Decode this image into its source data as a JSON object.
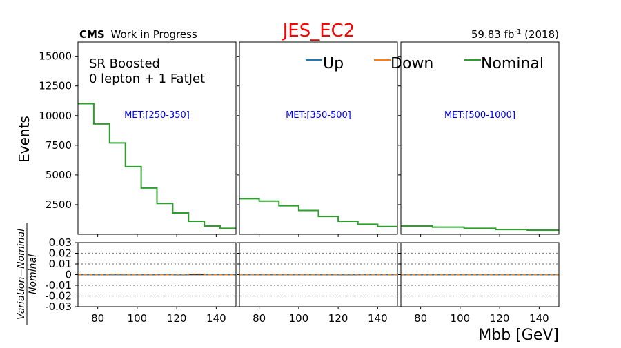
{
  "title": "JES_EC2",
  "header_left_bold": "CMS",
  "header_left_rest": "Work in Progress",
  "header_right": "59.83 fb",
  "header_right_sup": "-1",
  "header_right_tail": " (2018)",
  "region_line1": "SR Boosted",
  "region_line2": "0 lepton + 1 FatJet",
  "ylabel_top": "Events",
  "ylabel_bottom_num": "Variation−Nominal",
  "ylabel_bottom_den": "Nominal",
  "xlabel": "Mbb [GeV]",
  "legend": [
    "Up",
    "Down",
    "Nominal"
  ],
  "colors": {
    "up": "#1f77b4",
    "down": "#ff7f0e",
    "nominal": "#2ca02c",
    "title": "#ff0000",
    "met": "#0000ff"
  },
  "chart_data": {
    "type": "line",
    "drawstyle": "steps",
    "x_range": [
      70,
      150
    ],
    "y_range": [
      0,
      16200
    ],
    "y_ticks": [
      2500,
      5000,
      7500,
      10000,
      12500,
      15000
    ],
    "x_ticks": [
      80,
      100,
      120,
      140
    ],
    "ratio_ylim": [
      -0.03,
      0.03
    ],
    "ratio_ticks": [
      -0.03,
      -0.02,
      -0.01,
      0,
      0.01,
      0.02,
      0.03
    ],
    "ratio_tick_labels": [
      "-0.03",
      "-0.02",
      "-0.01",
      "0",
      "0.01",
      "0.02",
      "0.03"
    ],
    "ratio_grid": [
      -0.02,
      -0.01,
      0.01,
      0.02
    ],
    "panels": [
      {
        "met_label": "MET:[250-350]",
        "edges": [
          70,
          78,
          86,
          94,
          102,
          110,
          118,
          126,
          134,
          142,
          150
        ],
        "nominal": [
          11000,
          9300,
          7700,
          5700,
          3900,
          2600,
          1800,
          1100,
          700,
          500
        ],
        "up_ratio": [
          0,
          -0.0002,
          0,
          -0.0002,
          -0.0002,
          0,
          -0.0002,
          0.0005,
          0.0002,
          0
        ],
        "down_ratio": [
          0,
          0,
          0.0003,
          0,
          0,
          -0.0002,
          0.0002,
          0.0006,
          0,
          -0.0002
        ]
      },
      {
        "met_label": "MET:[350-500]",
        "edges": [
          70,
          80,
          90,
          100,
          110,
          120,
          130,
          140,
          150
        ],
        "nominal": [
          3000,
          2800,
          2400,
          2000,
          1500,
          1100,
          850,
          650
        ],
        "up_ratio": [
          0,
          0,
          0,
          0,
          -0.0002,
          -0.0002,
          0,
          0
        ],
        "down_ratio": [
          0,
          0,
          0,
          0,
          0,
          0.0002,
          0,
          0
        ]
      },
      {
        "met_label": "MET:[500-1000]",
        "edges": [
          70,
          86,
          102,
          118,
          134,
          150
        ],
        "nominal": [
          700,
          600,
          500,
          400,
          350
        ],
        "up_ratio": [
          -0.0002,
          0,
          0,
          0,
          0
        ],
        "down_ratio": [
          0,
          0,
          0,
          0,
          0
        ]
      }
    ]
  }
}
